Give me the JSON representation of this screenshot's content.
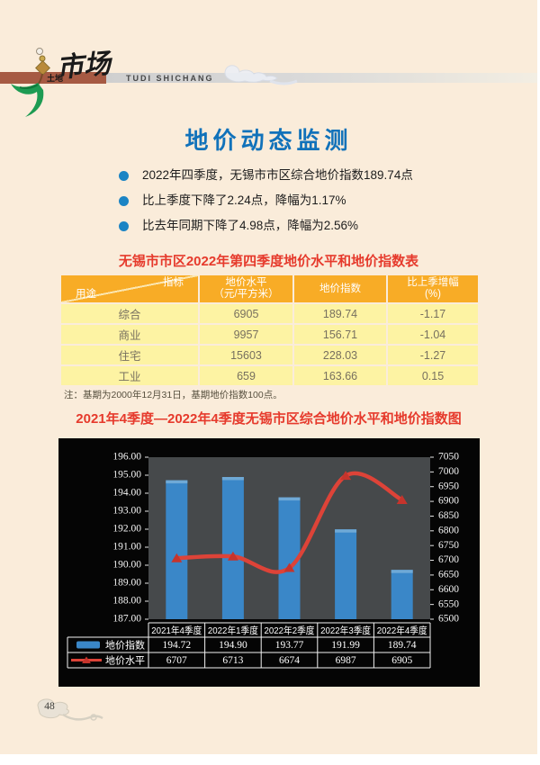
{
  "page": {
    "number": "48",
    "bg_color": "#faecda"
  },
  "header": {
    "brand_zh": "土地",
    "brand_script": "市场",
    "brand_en": "TUDI SHICHANG",
    "band_color": "#a65a43"
  },
  "title": "地价动态监测",
  "title_color": "#1172ba",
  "bullets": [
    "2022年四季度，无锡市市区综合地价指数189.74点",
    "比上季度下降了2.24点，降幅为1.17%",
    "比去年同期下降了4.98点，降幅为2.56%"
  ],
  "table": {
    "title": "无锡市市区2022年第四季度地价水平和地价指数表",
    "corner_top": "指标",
    "corner_bottom": "用途",
    "headers": [
      "地价水平\n（元/平方米）",
      "地价指数",
      "比上季增幅\n(%)"
    ],
    "rows": [
      [
        "综合",
        "6905",
        "189.74",
        "-1.17"
      ],
      [
        "商业",
        "9957",
        "156.71",
        "-1.04"
      ],
      [
        "住宅",
        "15603",
        "228.03",
        "-1.27"
      ],
      [
        "工业",
        "659",
        "163.66",
        "0.15"
      ]
    ],
    "note": "注：基期为2000年12月31日，基期地价指数100点。",
    "header_color": "#f8ac26",
    "body_color": "#fdf3a3",
    "title_color": "#e63a2c"
  },
  "chart": {
    "title": "2021年4季度—2022年4季度无锡市区综合地价水平和地价指数图",
    "title_color": "#e63a2c"
  },
  "chart_data": {
    "type": "combo bar+line",
    "title": "2021年4季度—2022年4季度无锡市区综合地价水平和地价指数图",
    "categories": [
      "2021年4季度",
      "2022年1季度",
      "2022年2季度",
      "2022年3季度",
      "2022年4季度"
    ],
    "series": [
      {
        "name": "地价指数",
        "type": "bar",
        "axis": "left",
        "color": "#3a87c8",
        "values": [
          194.72,
          194.9,
          193.77,
          191.99,
          189.74
        ],
        "labels": [
          "194.72",
          "194.90",
          "193.77",
          "191.99",
          "189.74"
        ]
      },
      {
        "name": "地价水平",
        "type": "line",
        "axis": "right",
        "color": "#dd4338",
        "marker_color": "#c6342c",
        "values": [
          6707,
          6713,
          6674,
          6987,
          6905
        ],
        "labels": [
          "6707",
          "6713",
          "6674",
          "6987",
          "6905"
        ]
      }
    ],
    "left_axis": {
      "min": 187,
      "max": 196,
      "step": 1,
      "decimals": 2
    },
    "right_axis": {
      "min": 6500,
      "max": 7050,
      "step": 50,
      "decimals": 0
    },
    "grid": false,
    "legend_position": "bottom-table",
    "plot_bg": "#46494b",
    "chart_bg": "#050505",
    "axis_text_color": "#f4f4f4"
  }
}
